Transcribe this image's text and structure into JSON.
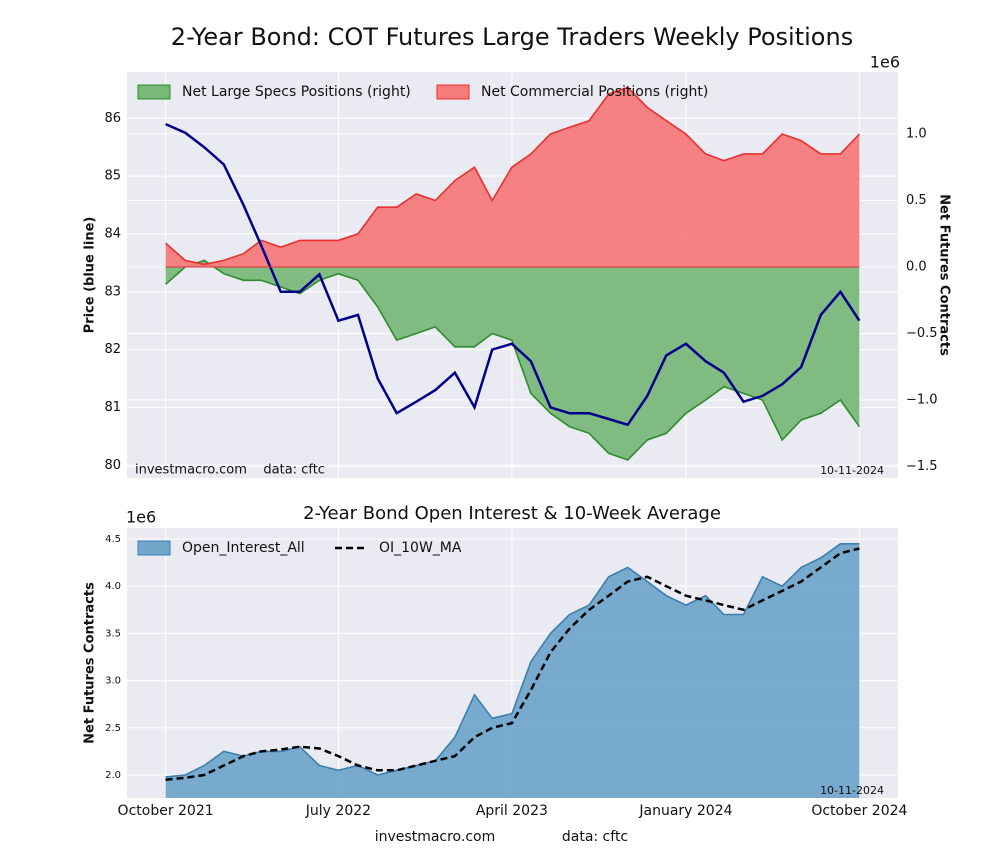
{
  "chart_data": [
    {
      "type": "area_line",
      "title": "2-Year Bond: COT Futures Large Traders Weekly Positions",
      "y_label": "Price (blue line)",
      "y2_label": "Net Futures Contracts",
      "y2_offset": "1e6",
      "source_note": "investmacro.com    data: cftc",
      "date_note": "10-11-2024",
      "grid": true,
      "legend": "upper left",
      "xlim": [
        "2021-08",
        "2024-12"
      ],
      "xticks": [
        "2021-10",
        "2022-07",
        "2023-04",
        "2024-01",
        "2024-10"
      ],
      "ylim": [
        79.78,
        86.8
      ],
      "yticks": [
        80,
        81,
        82,
        83,
        84,
        85,
        86
      ],
      "y2lim": [
        -1.586,
        1.466
      ],
      "y2ticks": [
        {
          "value": -1.5,
          "label": "−1.5"
        },
        {
          "value": -1,
          "label": "−1.0"
        },
        {
          "value": -0.5,
          "label": "−0.5"
        },
        {
          "value": 0,
          "label": "0.0"
        },
        0.5,
        {
          "value": 1,
          "label": "1.0"
        }
      ],
      "x": [
        "2021-10",
        "2021-11",
        "2021-12",
        "2022-01",
        "2022-02",
        "2022-03",
        "2022-04",
        "2022-05",
        "2022-06",
        "2022-07",
        "2022-08",
        "2022-09",
        "2022-10",
        "2022-11",
        "2022-12",
        "2023-01",
        "2023-02",
        "2023-03",
        "2023-04",
        "2023-05",
        "2023-06",
        "2023-07",
        "2023-08",
        "2023-09",
        "2023-10",
        "2023-11",
        "2023-12",
        "2024-01",
        "2024-02",
        "2024-03",
        "2024-04",
        "2024-05",
        "2024-06",
        "2024-07",
        "2024-08",
        "2024-09",
        "2024-10"
      ],
      "series": [
        {
          "name": "Net Large Specs Positions (right)",
          "color": "#2e8b2e",
          "fill": "#7ab87a",
          "axis": "y2",
          "values": [
            -0.13,
            0.0,
            0.05,
            -0.05,
            -0.1,
            -0.1,
            -0.15,
            -0.2,
            -0.1,
            -0.05,
            -0.1,
            -0.3,
            -0.55,
            -0.5,
            -0.45,
            -0.6,
            -0.6,
            -0.5,
            -0.55,
            -0.95,
            -1.1,
            -1.2,
            -1.25,
            -1.4,
            -1.45,
            -1.3,
            -1.25,
            -1.1,
            -1.0,
            -0.9,
            -0.95,
            -1.0,
            -1.3,
            -1.15,
            -1.1,
            -1.0,
            -1.2
          ]
        },
        {
          "name": "Net Commercial Positions (right)",
          "color": "#e83030",
          "fill": "#f67b7b",
          "axis": "y2",
          "values": [
            0.18,
            0.05,
            0.02,
            0.05,
            0.1,
            0.2,
            0.15,
            0.2,
            0.2,
            0.2,
            0.25,
            0.45,
            0.45,
            0.55,
            0.5,
            0.65,
            0.75,
            0.5,
            0.75,
            0.85,
            1.0,
            1.05,
            1.1,
            1.3,
            1.35,
            1.2,
            1.1,
            1.0,
            0.85,
            0.8,
            0.85,
            0.85,
            1.0,
            0.95,
            0.85,
            0.85,
            1.0
          ]
        },
        {
          "color": "#00008b",
          "values": [
            85.9,
            85.75,
            85.5,
            85.2,
            84.5,
            83.8,
            83.0,
            83.0,
            83.3,
            82.5,
            82.6,
            81.5,
            80.9,
            81.1,
            81.3,
            81.6,
            81.0,
            82.0,
            82.1,
            81.8,
            81.0,
            80.9,
            80.9,
            80.8,
            80.7,
            81.2,
            81.9,
            82.1,
            81.8,
            81.6,
            81.1,
            81.2,
            81.4,
            81.7,
            82.6,
            83.0,
            82.5
          ]
        }
      ]
    },
    {
      "type": "area_line",
      "title": "2-Year Bond Open Interest & 10-Week Average",
      "y_label": "Net Futures Contracts",
      "y_offset": "1e6",
      "date_note": "10-11-2024",
      "grid": true,
      "legend": "upper left",
      "xlim": [
        "2021-08",
        "2024-12"
      ],
      "xticks": [
        {
          "value": "2021-10",
          "label": "October 2021"
        },
        {
          "value": "2022-07",
          "label": "July 2022"
        },
        {
          "value": "2023-04",
          "label": "April 2023"
        },
        {
          "value": "2024-01",
          "label": "January 2024"
        },
        {
          "value": "2024-10",
          "label": "October 2024"
        }
      ],
      "ylim": [
        1.756,
        4.617
      ],
      "yticks": [
        {
          "value": 2,
          "label": "2.0"
        },
        2.5,
        {
          "value": 3,
          "label": "3.0"
        },
        3.5,
        {
          "value": 4,
          "label": "4.0"
        },
        4.5
      ],
      "x": [
        "2021-10",
        "2021-11",
        "2021-12",
        "2022-01",
        "2022-02",
        "2022-03",
        "2022-04",
        "2022-05",
        "2022-06",
        "2022-07",
        "2022-08",
        "2022-09",
        "2022-10",
        "2022-11",
        "2022-12",
        "2023-01",
        "2023-02",
        "2023-03",
        "2023-04",
        "2023-05",
        "2023-06",
        "2023-07",
        "2023-08",
        "2023-09",
        "2023-10",
        "2023-11",
        "2023-12",
        "2024-01",
        "2024-02",
        "2024-03",
        "2024-04",
        "2024-05",
        "2024-06",
        "2024-07",
        "2024-08",
        "2024-09",
        "2024-10"
      ],
      "series": [
        {
          "name": "Open_Interest_All",
          "color": "#3b7fb0",
          "fill": "#72a7cb",
          "values": [
            1.98,
            2.0,
            2.1,
            2.25,
            2.2,
            2.25,
            2.25,
            2.3,
            2.1,
            2.05,
            2.1,
            2.0,
            2.05,
            2.1,
            2.15,
            2.4,
            2.85,
            2.6,
            2.65,
            3.2,
            3.5,
            3.7,
            3.8,
            4.1,
            4.2,
            4.05,
            3.9,
            3.8,
            3.9,
            3.7,
            3.7,
            4.1,
            4.0,
            4.2,
            4.3,
            4.45,
            4.45
          ]
        },
        {
          "name": "OI_10W_MA",
          "color": "#000000",
          "dash": true,
          "values": [
            1.95,
            1.97,
            2.0,
            2.1,
            2.2,
            2.25,
            2.27,
            2.3,
            2.28,
            2.2,
            2.1,
            2.05,
            2.05,
            2.1,
            2.15,
            2.2,
            2.4,
            2.5,
            2.55,
            2.9,
            3.3,
            3.55,
            3.75,
            3.9,
            4.05,
            4.1,
            4.0,
            3.9,
            3.85,
            3.8,
            3.75,
            3.85,
            3.95,
            4.05,
            4.2,
            4.35,
            4.4
          ]
        }
      ]
    }
  ],
  "footer": {
    "site": "investmacro.com",
    "data": "data: cftc"
  }
}
